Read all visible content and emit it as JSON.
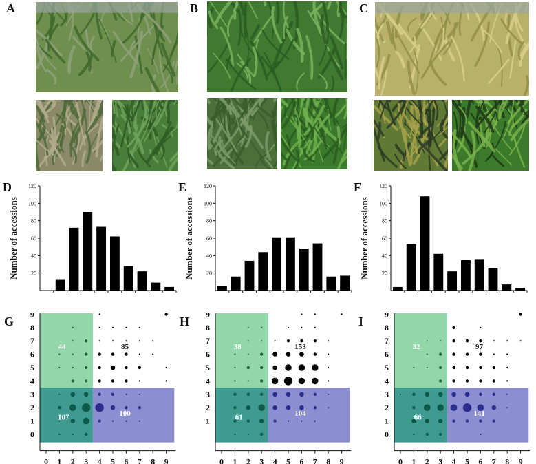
{
  "panels": {
    "A": "A",
    "B": "B",
    "C": "C",
    "D": "D",
    "E": "E",
    "F": "F",
    "G": "G",
    "H": "H",
    "I": "I"
  },
  "photos": [
    {
      "id": "photo-a-top",
      "desc_icon": "field-rows-photo",
      "colors": [
        "#6f8f4f",
        "#3f6a2c",
        "#8fa07a"
      ]
    },
    {
      "id": "photo-a-left",
      "desc_icon": "dry-plant-photo",
      "colors": [
        "#8a8a6a",
        "#4e6a3a",
        "#b3ab8c"
      ]
    },
    {
      "id": "photo-a-right",
      "desc_icon": "green-leaves-photo",
      "colors": [
        "#4b7d3a",
        "#6fa25a",
        "#2f5a25"
      ]
    },
    {
      "id": "photo-b-top",
      "desc_icon": "dense-leaves-photo",
      "colors": [
        "#3f7a30",
        "#79b35d",
        "#2c5a22"
      ]
    },
    {
      "id": "photo-b-left",
      "desc_icon": "labeled-plant-photo",
      "colors": [
        "#4c6e3a",
        "#7a9a6a",
        "#3a5a2c"
      ]
    },
    {
      "id": "photo-b-right",
      "desc_icon": "grass-clump-photo",
      "colors": [
        "#3b7a2c",
        "#6fb04c",
        "#2a5a1e"
      ]
    },
    {
      "id": "photo-c-top",
      "desc_icon": "lodged-field-photo",
      "colors": [
        "#b9b06a",
        "#8f8f4a",
        "#d8cf8a"
      ]
    },
    {
      "id": "photo-c-left",
      "desc_icon": "ditch-rows-photo",
      "colors": [
        "#5e7a34",
        "#a8a04a",
        "#2c3a24"
      ]
    },
    {
      "id": "photo-c-right",
      "desc_icon": "tall-stems-photo",
      "colors": [
        "#3a7a2a",
        "#7ab04a",
        "#1e3a18"
      ]
    }
  ],
  "histograms": [
    {
      "letter": "D",
      "ylabel": "Number of accessions",
      "yticks": [
        "20",
        "40",
        "60",
        "80",
        "100",
        "120"
      ],
      "chart_data": {
        "type": "bar",
        "ylim": [
          0,
          120
        ],
        "values": [
          0,
          13,
          72,
          90,
          73,
          62,
          28,
          22,
          9,
          4
        ]
      }
    },
    {
      "letter": "E",
      "ylabel": "Number of accessions",
      "yticks": [
        "20",
        "40",
        "60",
        "80",
        "100",
        "120"
      ],
      "chart_data": {
        "type": "bar",
        "ylim": [
          0,
          120
        ],
        "values": [
          5,
          16,
          34,
          44,
          61,
          61,
          48,
          54,
          16,
          17
        ]
      }
    },
    {
      "letter": "F",
      "ylabel": "Number of accessions",
      "yticks": [
        "20",
        "40",
        "60",
        "80",
        "100",
        "120"
      ],
      "chart_data": {
        "type": "bar",
        "ylim": [
          0,
          120
        ],
        "values": [
          4,
          53,
          108,
          42,
          22,
          35,
          36,
          26,
          7,
          3
        ]
      }
    }
  ],
  "bubble_charts": [
    {
      "letter": "G",
      "xticks": [
        "0",
        "1",
        "2",
        "3",
        "4",
        "5",
        "6",
        "7",
        "8",
        "9"
      ],
      "yticks": [
        "0",
        "1",
        "2",
        "3",
        "4",
        "5",
        "6",
        "7",
        "8",
        "9"
      ],
      "counts": {
        "top_left": "44",
        "top_right": "85",
        "bottom_left": "107",
        "bottom_right": "100"
      },
      "chart_data": {
        "type": "scatter",
        "xlim": [
          0,
          9
        ],
        "ylim": [
          0,
          9
        ],
        "points": [
          [
            1,
            0,
            1
          ],
          [
            2,
            0,
            1
          ],
          [
            3,
            0,
            2
          ],
          [
            1,
            1,
            1
          ],
          [
            2,
            1,
            3
          ],
          [
            3,
            1,
            4
          ],
          [
            4,
            1,
            2
          ],
          [
            5,
            1,
            1
          ],
          [
            6,
            1,
            1
          ],
          [
            7,
            1,
            1
          ],
          [
            1,
            2,
            2
          ],
          [
            2,
            2,
            4
          ],
          [
            3,
            2,
            5
          ],
          [
            4,
            2,
            5
          ],
          [
            5,
            2,
            3
          ],
          [
            6,
            2,
            2
          ],
          [
            7,
            2,
            2
          ],
          [
            1,
            3,
            1
          ],
          [
            2,
            3,
            3
          ],
          [
            3,
            3,
            3
          ],
          [
            4,
            3,
            2
          ],
          [
            5,
            3,
            2
          ],
          [
            6,
            3,
            1
          ],
          [
            7,
            3,
            1
          ],
          [
            2,
            4,
            2
          ],
          [
            3,
            4,
            2
          ],
          [
            4,
            4,
            2
          ],
          [
            5,
            4,
            2
          ],
          [
            6,
            4,
            2
          ],
          [
            7,
            4,
            1
          ],
          [
            9,
            4,
            1
          ],
          [
            1,
            5,
            1
          ],
          [
            2,
            5,
            1
          ],
          [
            3,
            5,
            2
          ],
          [
            4,
            5,
            2
          ],
          [
            5,
            5,
            3
          ],
          [
            6,
            5,
            2
          ],
          [
            7,
            5,
            2
          ],
          [
            9,
            5,
            1
          ],
          [
            1,
            6,
            1
          ],
          [
            2,
            6,
            1
          ],
          [
            3,
            6,
            2
          ],
          [
            4,
            6,
            2
          ],
          [
            5,
            6,
            2
          ],
          [
            6,
            6,
            2
          ],
          [
            7,
            6,
            1
          ],
          [
            8,
            6,
            1
          ],
          [
            2,
            7,
            1
          ],
          [
            3,
            7,
            2
          ],
          [
            4,
            7,
            1
          ],
          [
            5,
            7,
            1
          ],
          [
            6,
            7,
            1
          ],
          [
            7,
            7,
            1
          ],
          [
            8,
            7,
            1
          ],
          [
            2,
            8,
            1
          ],
          [
            4,
            8,
            1
          ],
          [
            5,
            8,
            1
          ],
          [
            6,
            8,
            1
          ],
          [
            7,
            8,
            1
          ],
          [
            4,
            9,
            1
          ],
          [
            9,
            9,
            2
          ]
        ]
      }
    },
    {
      "letter": "H",
      "xticks": [
        "0",
        "1",
        "2",
        "3",
        "4",
        "5",
        "6",
        "7",
        "8",
        "9"
      ],
      "yticks": [
        "1",
        "2",
        "3",
        "4",
        "5",
        "6",
        "7",
        "8",
        "9"
      ],
      "counts": {
        "top_left": "38",
        "top_right": "153",
        "bottom_left": "61",
        "bottom_right": "104"
      },
      "chart_data": {
        "type": "scatter",
        "xlim": [
          0,
          9
        ],
        "ylim": [
          0,
          9
        ],
        "points": [
          [
            1,
            0,
            1
          ],
          [
            2,
            0,
            1
          ],
          [
            3,
            0,
            2
          ],
          [
            1,
            1,
            2
          ],
          [
            2,
            1,
            2
          ],
          [
            3,
            1,
            3
          ],
          [
            4,
            1,
            2
          ],
          [
            5,
            1,
            1
          ],
          [
            6,
            1,
            1
          ],
          [
            7,
            1,
            1
          ],
          [
            1,
            2,
            2
          ],
          [
            2,
            2,
            3
          ],
          [
            3,
            2,
            4
          ],
          [
            4,
            2,
            3
          ],
          [
            5,
            2,
            3
          ],
          [
            6,
            2,
            3
          ],
          [
            7,
            2,
            2
          ],
          [
            8,
            2,
            1
          ],
          [
            1,
            3,
            2
          ],
          [
            2,
            3,
            2
          ],
          [
            3,
            3,
            2
          ],
          [
            4,
            3,
            3
          ],
          [
            5,
            3,
            3
          ],
          [
            6,
            3,
            3
          ],
          [
            7,
            3,
            2
          ],
          [
            8,
            3,
            1
          ],
          [
            1,
            4,
            1
          ],
          [
            2,
            4,
            1
          ],
          [
            3,
            4,
            2
          ],
          [
            4,
            4,
            4
          ],
          [
            5,
            4,
            5
          ],
          [
            6,
            4,
            4
          ],
          [
            7,
            4,
            4
          ],
          [
            8,
            4,
            1
          ],
          [
            1,
            5,
            1
          ],
          [
            2,
            5,
            2
          ],
          [
            3,
            5,
            2
          ],
          [
            4,
            5,
            3
          ],
          [
            5,
            5,
            4
          ],
          [
            6,
            5,
            4
          ],
          [
            7,
            5,
            4
          ],
          [
            8,
            5,
            1
          ],
          [
            1,
            6,
            1
          ],
          [
            2,
            6,
            1
          ],
          [
            3,
            6,
            2
          ],
          [
            4,
            6,
            3
          ],
          [
            5,
            6,
            3
          ],
          [
            6,
            6,
            3
          ],
          [
            7,
            6,
            2
          ],
          [
            8,
            6,
            1
          ],
          [
            2,
            7,
            1
          ],
          [
            3,
            7,
            1
          ],
          [
            4,
            7,
            1
          ],
          [
            5,
            7,
            2
          ],
          [
            6,
            7,
            2
          ],
          [
            7,
            7,
            2
          ],
          [
            8,
            7,
            1
          ],
          [
            2,
            8,
            1
          ],
          [
            3,
            8,
            1
          ],
          [
            5,
            8,
            1
          ],
          [
            6,
            8,
            1
          ],
          [
            7,
            8,
            1
          ],
          [
            6,
            9,
            1
          ],
          [
            7,
            9,
            1
          ],
          [
            9,
            9,
            1
          ]
        ]
      }
    },
    {
      "letter": "I",
      "xticks": [
        "0",
        "1",
        "2",
        "3",
        "4",
        "5",
        "6",
        "7",
        "8",
        "9"
      ],
      "yticks": [
        "0",
        "1",
        "2",
        "3",
        "4",
        "5",
        "6",
        "7",
        "8",
        "9"
      ],
      "counts": {
        "top_left": "32",
        "top_right": "97",
        "bottom_left": "66",
        "bottom_right": "141"
      },
      "chart_data": {
        "type": "scatter",
        "xlim": [
          0,
          9
        ],
        "ylim": [
          0,
          9
        ],
        "points": [
          [
            1,
            0,
            1
          ],
          [
            2,
            0,
            2
          ],
          [
            3,
            0,
            2
          ],
          [
            6,
            0,
            1
          ],
          [
            1,
            1,
            3
          ],
          [
            2,
            1,
            3
          ],
          [
            3,
            1,
            3
          ],
          [
            4,
            1,
            2
          ],
          [
            5,
            1,
            2
          ],
          [
            6,
            1,
            2
          ],
          [
            7,
            1,
            2
          ],
          [
            1,
            2,
            2
          ],
          [
            2,
            2,
            4
          ],
          [
            3,
            2,
            4
          ],
          [
            4,
            2,
            4
          ],
          [
            5,
            2,
            5
          ],
          [
            6,
            2,
            4
          ],
          [
            7,
            2,
            3
          ],
          [
            8,
            2,
            1
          ],
          [
            0,
            3,
            1
          ],
          [
            1,
            3,
            2
          ],
          [
            2,
            3,
            3
          ],
          [
            3,
            3,
            3
          ],
          [
            4,
            3,
            3
          ],
          [
            5,
            3,
            3
          ],
          [
            6,
            3,
            2
          ],
          [
            7,
            3,
            2
          ],
          [
            8,
            3,
            1
          ],
          [
            3,
            4,
            2
          ],
          [
            4,
            4,
            2
          ],
          [
            5,
            4,
            2
          ],
          [
            6,
            4,
            2
          ],
          [
            7,
            4,
            2
          ],
          [
            8,
            4,
            1
          ],
          [
            1,
            5,
            1
          ],
          [
            2,
            5,
            1
          ],
          [
            3,
            5,
            2
          ],
          [
            4,
            5,
            2
          ],
          [
            5,
            5,
            2
          ],
          [
            6,
            5,
            2
          ],
          [
            7,
            5,
            2
          ],
          [
            8,
            5,
            1
          ],
          [
            2,
            6,
            1
          ],
          [
            3,
            6,
            2
          ],
          [
            4,
            6,
            2
          ],
          [
            5,
            6,
            2
          ],
          [
            6,
            6,
            2
          ],
          [
            7,
            6,
            1
          ],
          [
            8,
            6,
            1
          ],
          [
            2,
            7,
            1
          ],
          [
            3,
            7,
            1
          ],
          [
            4,
            7,
            2
          ],
          [
            5,
            7,
            2
          ],
          [
            6,
            7,
            2
          ],
          [
            7,
            7,
            1
          ],
          [
            8,
            7,
            1
          ],
          [
            9,
            7,
            1
          ],
          [
            4,
            8,
            2
          ],
          [
            6,
            8,
            1
          ],
          [
            9,
            9,
            2
          ]
        ]
      }
    }
  ]
}
